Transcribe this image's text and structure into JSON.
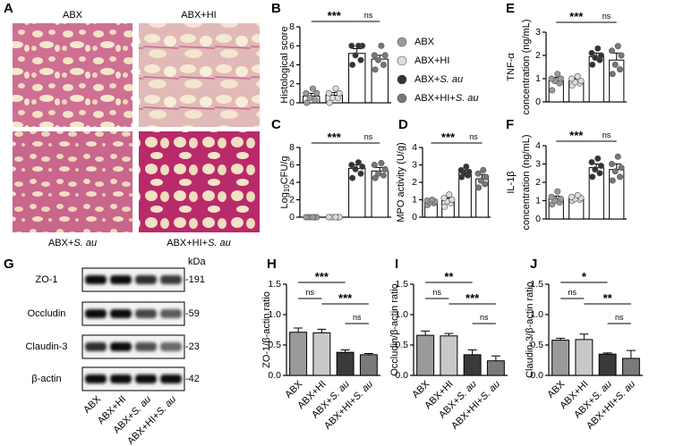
{
  "histology": {
    "panel": "A",
    "labels": [
      "ABX",
      "ABX+HI",
      "ABX+S. au",
      "ABX+HI+S. au"
    ]
  },
  "blot": {
    "panel": "G",
    "kda_label": "kDa",
    "rows": [
      {
        "name": "ZO-1",
        "kda": "-191"
      },
      {
        "name": "Occludin",
        "kda": "-59"
      },
      {
        "name": "Claudin-3",
        "kda": "-23"
      },
      {
        "name": "β-actin",
        "kda": "-42"
      }
    ],
    "lanes": [
      "ABX",
      "ABX+HI",
      "ABX+S. au",
      "ABX+HI+S. au"
    ]
  },
  "chart_data": [
    {
      "type": "bar",
      "panel": "B",
      "ylabel": "Histological score",
      "categories": [
        null,
        null,
        null,
        null
      ],
      "values": [
        0.7,
        0.8,
        5.2,
        4.6
      ],
      "errors": [
        0.3,
        0.3,
        0.5,
        0.4
      ],
      "points": [
        [
          0,
          0.3,
          0.5,
          1,
          1,
          1.5
        ],
        [
          0,
          0.5,
          0.5,
          1,
          1,
          1.5
        ],
        [
          4,
          4.5,
          5,
          6,
          6,
          6
        ],
        [
          3.5,
          4,
          4.5,
          5,
          5,
          6
        ]
      ],
      "bar_colors": [
        "#ffffff",
        "#ffffff",
        "#ffffff",
        "#ffffff"
      ],
      "point_colors": [
        "#9a9a9a",
        "#dcdcdc",
        "#333333",
        "#777777"
      ],
      "legend": [
        "ABX",
        "ABX+HI",
        "ABX+S. au",
        "ABX+HI+S. au"
      ],
      "annotations": [
        "***",
        "ns"
      ],
      "ylim": [
        0,
        8
      ],
      "yticks": [
        0,
        2,
        4,
        6,
        8
      ]
    },
    {
      "type": "bar",
      "panel": "C",
      "ylabel": {
        "base": "Log",
        "sub": "10",
        "unit": "CFU/g"
      },
      "categories": [
        null,
        null,
        null,
        null
      ],
      "values": [
        0,
        0,
        5.6,
        5.3
      ],
      "errors": [
        0.1,
        0.1,
        0.4,
        0.4
      ],
      "points": [
        [
          0,
          0,
          0,
          0,
          0,
          0
        ],
        [
          0,
          0,
          0,
          0,
          0,
          0
        ],
        [
          4.5,
          5,
          5.5,
          5.8,
          6,
          6.3
        ],
        [
          4.5,
          4.8,
          5,
          5.5,
          6,
          6.2
        ]
      ],
      "bar_colors": [
        "#ffffff",
        "#ffffff",
        "#ffffff",
        "#ffffff"
      ],
      "point_colors": [
        "#9a9a9a",
        "#dcdcdc",
        "#333333",
        "#777777"
      ],
      "annotations": [
        "***",
        "ns"
      ],
      "ylim": [
        0,
        8
      ],
      "yticks": [
        0,
        2,
        4,
        6,
        8
      ]
    },
    {
      "type": "bar",
      "panel": "D",
      "ylabel": "MPO activity (U/g)",
      "categories": [
        null,
        null,
        null,
        null
      ],
      "values": [
        0.85,
        0.95,
        2.55,
        2.2
      ],
      "errors": [
        0.1,
        0.15,
        0.15,
        0.25
      ],
      "points": [
        [
          0.7,
          0.8,
          0.85,
          0.9,
          0.95,
          1.0
        ],
        [
          0.6,
          0.8,
          0.9,
          1.0,
          1.1,
          1.3
        ],
        [
          2.3,
          2.4,
          2.5,
          2.6,
          2.7,
          2.9
        ],
        [
          1.7,
          1.9,
          2.1,
          2.3,
          2.5,
          2.7
        ]
      ],
      "bar_colors": [
        "#ffffff",
        "#ffffff",
        "#ffffff",
        "#ffffff"
      ],
      "point_colors": [
        "#9a9a9a",
        "#dcdcdc",
        "#333333",
        "#777777"
      ],
      "annotations": [
        "***",
        "ns"
      ],
      "ylim": [
        0,
        4
      ],
      "yticks": [
        0,
        1,
        2,
        3,
        4
      ]
    },
    {
      "type": "bar",
      "panel": "E",
      "ylabel": [
        "TNF-α",
        "concentration (ng/mL)"
      ],
      "categories": [
        null,
        null,
        null,
        null
      ],
      "values": [
        0.9,
        0.9,
        1.95,
        1.8
      ],
      "errors": [
        0.15,
        0.1,
        0.15,
        0.3
      ],
      "points": [
        [
          0.5,
          0.8,
          0.9,
          1,
          1,
          1.2
        ],
        [
          0.7,
          0.8,
          0.85,
          0.9,
          1,
          1.1
        ],
        [
          1.6,
          1.8,
          1.9,
          2,
          2.1,
          2.3
        ],
        [
          1.2,
          1.4,
          1.6,
          2,
          2.2,
          2.4
        ]
      ],
      "bar_colors": [
        "#ffffff",
        "#ffffff",
        "#ffffff",
        "#ffffff"
      ],
      "point_colors": [
        "#9a9a9a",
        "#dcdcdc",
        "#333333",
        "#777777"
      ],
      "annotations": [
        "***",
        "ns"
      ],
      "ylim": [
        0,
        3
      ],
      "yticks": [
        0,
        1,
        2,
        3
      ]
    },
    {
      "type": "bar",
      "panel": "F",
      "ylabel": [
        "IL-1β",
        "concentration (ng/mL)"
      ],
      "categories": [
        null,
        null,
        null,
        null
      ],
      "values": [
        1.1,
        1.15,
        2.8,
        2.7
      ],
      "errors": [
        0.15,
        0.1,
        0.2,
        0.3
      ],
      "points": [
        [
          0.8,
          0.9,
          1,
          1.1,
          1.2,
          1.5
        ],
        [
          1,
          1.05,
          1.1,
          1.15,
          1.2,
          1.3
        ],
        [
          2.3,
          2.5,
          2.7,
          2.9,
          3.1,
          3.3
        ],
        [
          2.1,
          2.3,
          2.6,
          2.8,
          3,
          3.4
        ]
      ],
      "bar_colors": [
        "#ffffff",
        "#ffffff",
        "#ffffff",
        "#ffffff"
      ],
      "point_colors": [
        "#9a9a9a",
        "#dcdcdc",
        "#333333",
        "#777777"
      ],
      "annotations": [
        "***",
        "ns"
      ],
      "ylim": [
        0,
        4
      ],
      "yticks": [
        0,
        1,
        2,
        3,
        4
      ]
    },
    {
      "type": "bar",
      "panel": "H",
      "ylabel": "ZO-1/β-actin ratio",
      "categories": [
        "ABX",
        "ABX+HI",
        "ABX+S. au",
        "ABX+HI+S. au"
      ],
      "values": [
        0.71,
        0.7,
        0.38,
        0.34
      ],
      "errors": [
        0.07,
        0.06,
        0.04,
        0.02
      ],
      "bar_colors": [
        "#9a9a9a",
        "#c8c8c8",
        "#3a3a3a",
        "#7a7a7a"
      ],
      "annotations": [
        "***",
        "ns",
        "***",
        "ns"
      ],
      "ylim": [
        0,
        1.5
      ],
      "yticks": [
        {
          "value": 0,
          "label": "0.0"
        },
        {
          "value": 0.5,
          "label": "0.5"
        },
        {
          "value": 1,
          "label": "1.0"
        },
        {
          "value": 1.5,
          "label": "1.5"
        }
      ]
    },
    {
      "type": "bar",
      "panel": "I",
      "ylabel": "Occludin/β-actin ratio",
      "categories": [
        "ABX",
        "ABX+HI",
        "ABX+S. au",
        "ABX+HI+S. au"
      ],
      "values": [
        0.66,
        0.65,
        0.34,
        0.24
      ],
      "errors": [
        0.07,
        0.04,
        0.08,
        0.08
      ],
      "bar_colors": [
        "#9a9a9a",
        "#c8c8c8",
        "#3a3a3a",
        "#7a7a7a"
      ],
      "annotations": [
        "**",
        "ns",
        "***",
        "ns"
      ],
      "ylim": [
        0,
        1.5
      ],
      "yticks": [
        {
          "value": 0,
          "label": "0.0"
        },
        {
          "value": 0.5,
          "label": "0.5"
        },
        {
          "value": 1,
          "label": "1.0"
        },
        {
          "value": 1.5,
          "label": "1.5"
        }
      ]
    },
    {
      "type": "bar",
      "panel": "J",
      "ylabel": "Claudin-3/β-actin ratio",
      "categories": [
        "ABX",
        "ABX+HI",
        "ABX+S. au",
        "ABX+HI+S. au"
      ],
      "values": [
        0.58,
        0.59,
        0.35,
        0.28
      ],
      "errors": [
        0.03,
        0.09,
        0.02,
        0.13
      ],
      "bar_colors": [
        "#9a9a9a",
        "#c8c8c8",
        "#3a3a3a",
        "#7a7a7a"
      ],
      "annotations": [
        "*",
        "ns",
        "**",
        "ns"
      ],
      "ylim": [
        0,
        1.5
      ],
      "yticks": [
        {
          "value": 0,
          "label": "0.0"
        },
        {
          "value": 0.5,
          "label": "0.5"
        },
        {
          "value": 1,
          "label": "1.0"
        },
        {
          "value": 1.5,
          "label": "1.5"
        }
      ]
    }
  ]
}
